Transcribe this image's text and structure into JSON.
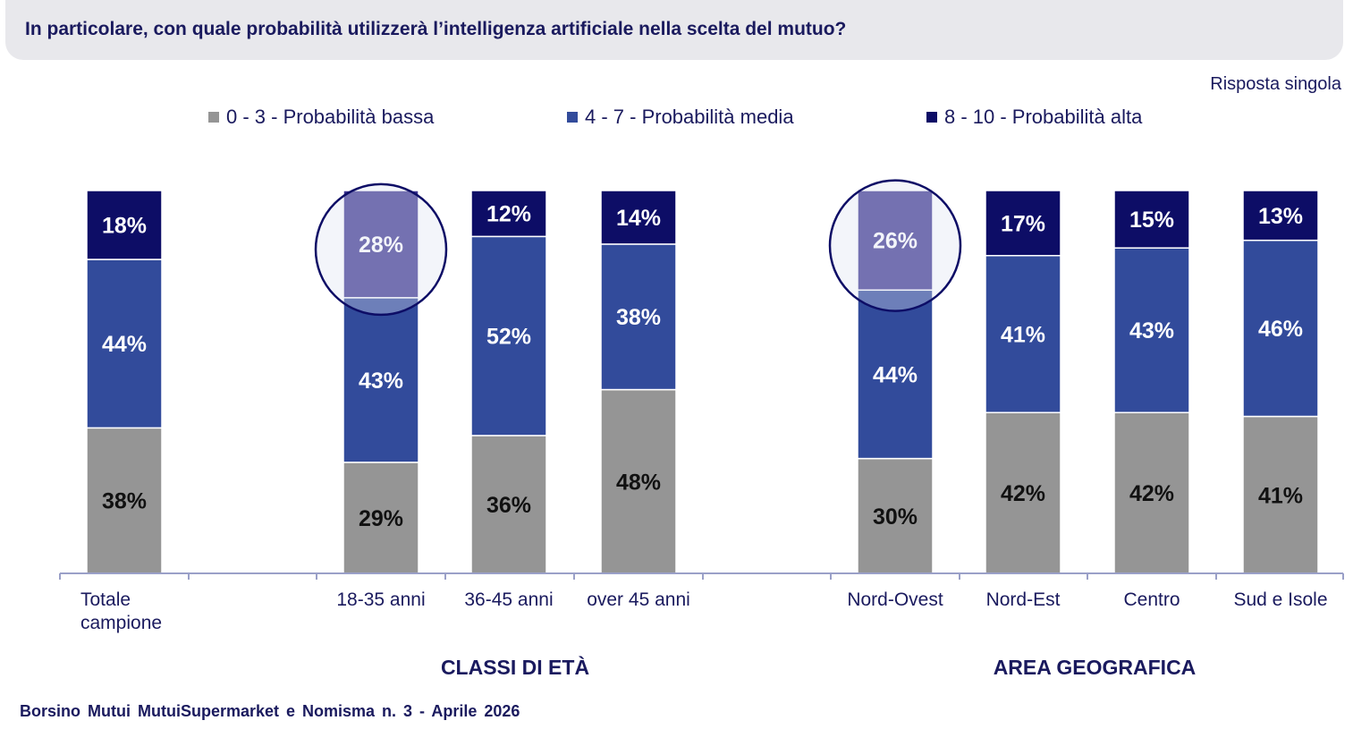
{
  "header": {
    "title": "In particolare, con quale probabilità utilizzerà l’intelligenza artificiale nella scelta del mutuo?",
    "subtitle": "Risposta singola"
  },
  "legend": [
    {
      "label": "0 - 3 - Probabilità bassa",
      "color": "#959595"
    },
    {
      "label": "4 - 7 - Probabilità media",
      "color": "#324b9b"
    },
    {
      "label": "8 - 10 - Probabilità alta",
      "color": "#0d0d66"
    }
  ],
  "groups": {
    "age": "CLASSI DI ETÀ",
    "area": "AREA GEOGRAFICA"
  },
  "footer": "Borsino Mutui MutuiSupermarket e Nomisma n. 3 - Aprile 2026",
  "chart_data": {
    "type": "bar",
    "stacked": true,
    "categories": [
      [
        "Totale",
        "campione"
      ],
      [
        "18-35 anni"
      ],
      [
        "36-45 anni"
      ],
      [
        "over 45 anni"
      ],
      [
        "Nord-Ovest"
      ],
      [
        "Nord-Est"
      ],
      [
        "Centro"
      ],
      [
        "Sud e Isole"
      ]
    ],
    "series": [
      {
        "name": "0 - 3 - Probabilità bassa",
        "values": [
          38,
          29,
          36,
          48,
          30,
          42,
          42,
          41
        ]
      },
      {
        "name": "4 - 7 - Probabilità media",
        "values": [
          44,
          43,
          52,
          38,
          44,
          41,
          43,
          46
        ]
      },
      {
        "name": "8 - 10 - Probabilità alta",
        "values": [
          18,
          28,
          12,
          14,
          26,
          17,
          15,
          13
        ]
      }
    ],
    "value_labels": [
      [
        "38%",
        "29%",
        "36%",
        "48%",
        "30%",
        "42%",
        "42%",
        "41%"
      ],
      [
        "44%",
        "43%",
        "52%",
        "38%",
        "44%",
        "41%",
        "43%",
        "46%"
      ],
      [
        "18%",
        "28%",
        "12%",
        "14%",
        "26%",
        "17%",
        "15%",
        "13%"
      ]
    ],
    "highlighted": [
      1,
      4
    ],
    "highlight_color": "#3d3590",
    "ylim": [
      0,
      100
    ],
    "grid": false,
    "legend_position": "top"
  }
}
